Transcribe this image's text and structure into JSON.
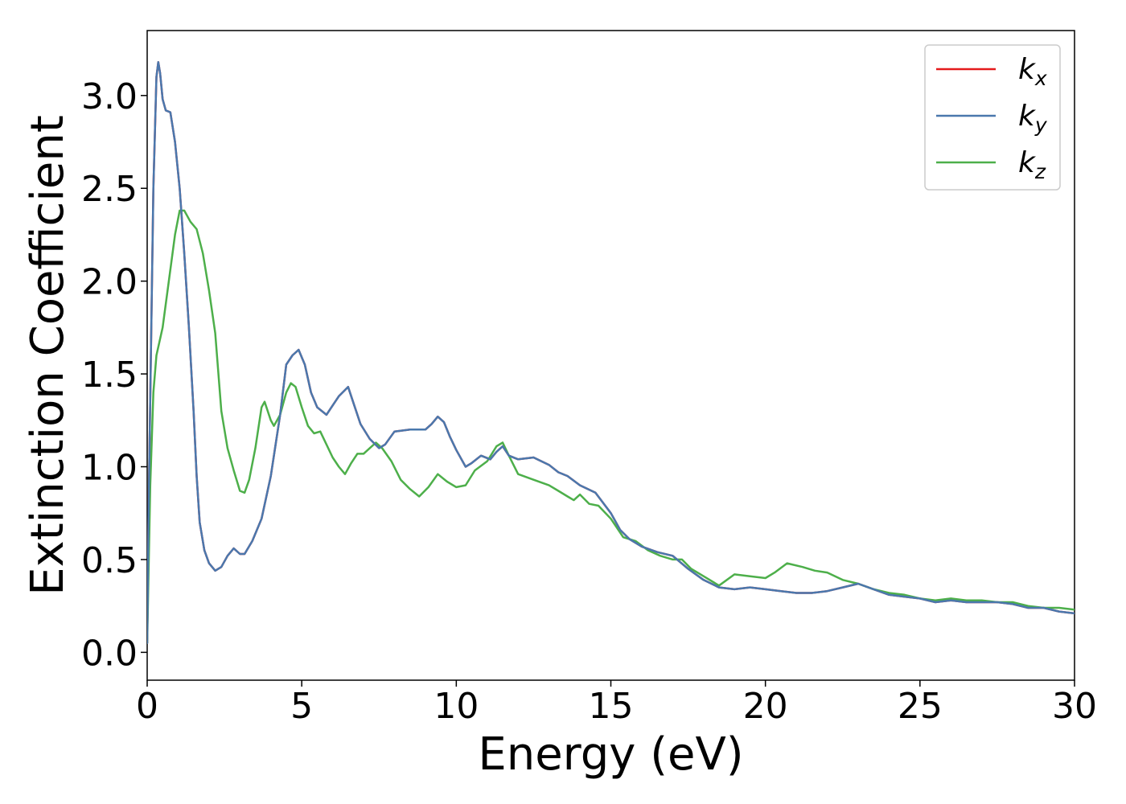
{
  "chart_data": {
    "type": "line",
    "title": "",
    "xlabel": "Energy (eV)",
    "ylabel": "Extinction Coefficient",
    "xlim": [
      0,
      30
    ],
    "ylim": [
      -0.15,
      3.35
    ],
    "xticks": [
      0,
      5,
      10,
      15,
      20,
      25,
      30
    ],
    "xtick_labels": [
      "0",
      "5",
      "10",
      "15",
      "20",
      "25",
      "30"
    ],
    "yticks": [
      0.0,
      0.5,
      1.0,
      1.5,
      2.0,
      2.5,
      3.0
    ],
    "ytick_labels": [
      "0.0",
      "0.5",
      "1.0",
      "1.5",
      "2.0",
      "2.5",
      "3.0"
    ],
    "grid": false,
    "legend": {
      "position": "top-right"
    },
    "series": [
      {
        "name": "k",
        "subscript": "x",
        "color": "#e41a1c",
        "points": [
          [
            0,
            0.05
          ],
          [
            0.05,
            0.8
          ],
          [
            0.12,
            1.6
          ],
          [
            0.2,
            2.5
          ],
          [
            0.3,
            3.1
          ],
          [
            0.36,
            3.18
          ],
          [
            0.42,
            3.12
          ],
          [
            0.5,
            2.98
          ],
          [
            0.6,
            2.92
          ],
          [
            0.75,
            2.91
          ],
          [
            0.9,
            2.75
          ],
          [
            1.05,
            2.5
          ],
          [
            1.2,
            2.15
          ],
          [
            1.35,
            1.75
          ],
          [
            1.5,
            1.3
          ],
          [
            1.6,
            0.95
          ],
          [
            1.7,
            0.7
          ],
          [
            1.85,
            0.55
          ],
          [
            2.0,
            0.48
          ],
          [
            2.2,
            0.44
          ],
          [
            2.4,
            0.46
          ],
          [
            2.6,
            0.52
          ],
          [
            2.8,
            0.56
          ],
          [
            3.0,
            0.53
          ],
          [
            3.15,
            0.53
          ],
          [
            3.4,
            0.6
          ],
          [
            3.7,
            0.72
          ],
          [
            4.0,
            0.95
          ],
          [
            4.3,
            1.28
          ],
          [
            4.5,
            1.55
          ],
          [
            4.7,
            1.6
          ],
          [
            4.9,
            1.63
          ],
          [
            5.1,
            1.55
          ],
          [
            5.3,
            1.4
          ],
          [
            5.5,
            1.32
          ],
          [
            5.8,
            1.28
          ],
          [
            6.0,
            1.33
          ],
          [
            6.2,
            1.38
          ],
          [
            6.5,
            1.43
          ],
          [
            6.7,
            1.33
          ],
          [
            6.9,
            1.23
          ],
          [
            7.2,
            1.15
          ],
          [
            7.5,
            1.1
          ],
          [
            7.7,
            1.12
          ],
          [
            8.0,
            1.19
          ],
          [
            8.5,
            1.2
          ],
          [
            9.0,
            1.2
          ],
          [
            9.2,
            1.23
          ],
          [
            9.4,
            1.27
          ],
          [
            9.6,
            1.24
          ],
          [
            9.8,
            1.16
          ],
          [
            10.0,
            1.09
          ],
          [
            10.3,
            1.0
          ],
          [
            10.5,
            1.02
          ],
          [
            10.8,
            1.06
          ],
          [
            11.1,
            1.04
          ],
          [
            11.3,
            1.08
          ],
          [
            11.5,
            1.11
          ],
          [
            11.7,
            1.06
          ],
          [
            12.0,
            1.04
          ],
          [
            12.5,
            1.05
          ],
          [
            13.0,
            1.01
          ],
          [
            13.3,
            0.97
          ],
          [
            13.6,
            0.95
          ],
          [
            14.0,
            0.9
          ],
          [
            14.5,
            0.86
          ],
          [
            15.0,
            0.75
          ],
          [
            15.3,
            0.66
          ],
          [
            15.6,
            0.61
          ],
          [
            16.0,
            0.57
          ],
          [
            16.5,
            0.54
          ],
          [
            17.0,
            0.52
          ],
          [
            17.5,
            0.45
          ],
          [
            18.0,
            0.39
          ],
          [
            18.5,
            0.35
          ],
          [
            19.0,
            0.34
          ],
          [
            19.5,
            0.35
          ],
          [
            20.0,
            0.34
          ],
          [
            20.5,
            0.33
          ],
          [
            21.0,
            0.32
          ],
          [
            21.5,
            0.32
          ],
          [
            22.0,
            0.33
          ],
          [
            22.5,
            0.35
          ],
          [
            23.0,
            0.37
          ],
          [
            23.5,
            0.34
          ],
          [
            24.0,
            0.31
          ],
          [
            24.5,
            0.3
          ],
          [
            25.0,
            0.29
          ],
          [
            25.5,
            0.27
          ],
          [
            26.0,
            0.28
          ],
          [
            26.5,
            0.27
          ],
          [
            27.0,
            0.27
          ],
          [
            27.5,
            0.27
          ],
          [
            28.0,
            0.26
          ],
          [
            28.5,
            0.24
          ],
          [
            29.0,
            0.24
          ],
          [
            29.5,
            0.22
          ],
          [
            30.0,
            0.21
          ]
        ]
      },
      {
        "name": "k",
        "subscript": "y",
        "color": "#4a78ad",
        "points": [
          [
            0,
            0.05
          ],
          [
            0.05,
            0.8
          ],
          [
            0.12,
            1.6
          ],
          [
            0.2,
            2.5
          ],
          [
            0.3,
            3.1
          ],
          [
            0.36,
            3.18
          ],
          [
            0.42,
            3.12
          ],
          [
            0.5,
            2.98
          ],
          [
            0.6,
            2.92
          ],
          [
            0.75,
            2.91
          ],
          [
            0.9,
            2.75
          ],
          [
            1.05,
            2.5
          ],
          [
            1.2,
            2.15
          ],
          [
            1.35,
            1.75
          ],
          [
            1.5,
            1.3
          ],
          [
            1.6,
            0.95
          ],
          [
            1.7,
            0.7
          ],
          [
            1.85,
            0.55
          ],
          [
            2.0,
            0.48
          ],
          [
            2.2,
            0.44
          ],
          [
            2.4,
            0.46
          ],
          [
            2.6,
            0.52
          ],
          [
            2.8,
            0.56
          ],
          [
            3.0,
            0.53
          ],
          [
            3.15,
            0.53
          ],
          [
            3.4,
            0.6
          ],
          [
            3.7,
            0.72
          ],
          [
            4.0,
            0.95
          ],
          [
            4.3,
            1.28
          ],
          [
            4.5,
            1.55
          ],
          [
            4.7,
            1.6
          ],
          [
            4.9,
            1.63
          ],
          [
            5.1,
            1.55
          ],
          [
            5.3,
            1.4
          ],
          [
            5.5,
            1.32
          ],
          [
            5.8,
            1.28
          ],
          [
            6.0,
            1.33
          ],
          [
            6.2,
            1.38
          ],
          [
            6.5,
            1.43
          ],
          [
            6.7,
            1.33
          ],
          [
            6.9,
            1.23
          ],
          [
            7.2,
            1.15
          ],
          [
            7.5,
            1.1
          ],
          [
            7.7,
            1.12
          ],
          [
            8.0,
            1.19
          ],
          [
            8.5,
            1.2
          ],
          [
            9.0,
            1.2
          ],
          [
            9.2,
            1.23
          ],
          [
            9.4,
            1.27
          ],
          [
            9.6,
            1.24
          ],
          [
            9.8,
            1.16
          ],
          [
            10.0,
            1.09
          ],
          [
            10.3,
            1.0
          ],
          [
            10.5,
            1.02
          ],
          [
            10.8,
            1.06
          ],
          [
            11.1,
            1.04
          ],
          [
            11.3,
            1.08
          ],
          [
            11.5,
            1.11
          ],
          [
            11.7,
            1.06
          ],
          [
            12.0,
            1.04
          ],
          [
            12.5,
            1.05
          ],
          [
            13.0,
            1.01
          ],
          [
            13.3,
            0.97
          ],
          [
            13.6,
            0.95
          ],
          [
            14.0,
            0.9
          ],
          [
            14.5,
            0.86
          ],
          [
            15.0,
            0.75
          ],
          [
            15.3,
            0.66
          ],
          [
            15.6,
            0.61
          ],
          [
            16.0,
            0.57
          ],
          [
            16.5,
            0.54
          ],
          [
            17.0,
            0.52
          ],
          [
            17.5,
            0.45
          ],
          [
            18.0,
            0.39
          ],
          [
            18.5,
            0.35
          ],
          [
            19.0,
            0.34
          ],
          [
            19.5,
            0.35
          ],
          [
            20.0,
            0.34
          ],
          [
            20.5,
            0.33
          ],
          [
            21.0,
            0.32
          ],
          [
            21.5,
            0.32
          ],
          [
            22.0,
            0.33
          ],
          [
            22.5,
            0.35
          ],
          [
            23.0,
            0.37
          ],
          [
            23.5,
            0.34
          ],
          [
            24.0,
            0.31
          ],
          [
            24.5,
            0.3
          ],
          [
            25.0,
            0.29
          ],
          [
            25.5,
            0.27
          ],
          [
            26.0,
            0.28
          ],
          [
            26.5,
            0.27
          ],
          [
            27.0,
            0.27
          ],
          [
            27.5,
            0.27
          ],
          [
            28.0,
            0.26
          ],
          [
            28.5,
            0.24
          ],
          [
            29.0,
            0.24
          ],
          [
            29.5,
            0.22
          ],
          [
            30.0,
            0.21
          ]
        ]
      },
      {
        "name": "k",
        "subscript": "z",
        "color": "#4daf4a",
        "points": [
          [
            0,
            0.05
          ],
          [
            0.1,
            0.9
          ],
          [
            0.2,
            1.4
          ],
          [
            0.3,
            1.6
          ],
          [
            0.5,
            1.75
          ],
          [
            0.7,
            2.0
          ],
          [
            0.9,
            2.25
          ],
          [
            1.05,
            2.38
          ],
          [
            1.2,
            2.38
          ],
          [
            1.4,
            2.32
          ],
          [
            1.6,
            2.28
          ],
          [
            1.8,
            2.15
          ],
          [
            2.0,
            1.95
          ],
          [
            2.2,
            1.72
          ],
          [
            2.4,
            1.3
          ],
          [
            2.6,
            1.1
          ],
          [
            2.8,
            0.98
          ],
          [
            3.0,
            0.87
          ],
          [
            3.15,
            0.86
          ],
          [
            3.3,
            0.93
          ],
          [
            3.5,
            1.1
          ],
          [
            3.7,
            1.32
          ],
          [
            3.8,
            1.35
          ],
          [
            4.0,
            1.25
          ],
          [
            4.1,
            1.22
          ],
          [
            4.3,
            1.28
          ],
          [
            4.5,
            1.4
          ],
          [
            4.65,
            1.45
          ],
          [
            4.8,
            1.43
          ],
          [
            5.0,
            1.32
          ],
          [
            5.2,
            1.22
          ],
          [
            5.4,
            1.18
          ],
          [
            5.6,
            1.19
          ],
          [
            5.8,
            1.12
          ],
          [
            6.0,
            1.05
          ],
          [
            6.2,
            1.0
          ],
          [
            6.4,
            0.96
          ],
          [
            6.6,
            1.02
          ],
          [
            6.8,
            1.07
          ],
          [
            7.0,
            1.07
          ],
          [
            7.2,
            1.1
          ],
          [
            7.4,
            1.13
          ],
          [
            7.6,
            1.1
          ],
          [
            7.9,
            1.03
          ],
          [
            8.2,
            0.93
          ],
          [
            8.5,
            0.88
          ],
          [
            8.8,
            0.84
          ],
          [
            9.1,
            0.89
          ],
          [
            9.4,
            0.96
          ],
          [
            9.7,
            0.92
          ],
          [
            10.0,
            0.89
          ],
          [
            10.3,
            0.9
          ],
          [
            10.6,
            0.98
          ],
          [
            11.0,
            1.03
          ],
          [
            11.3,
            1.11
          ],
          [
            11.5,
            1.13
          ],
          [
            11.7,
            1.06
          ],
          [
            12.0,
            0.96
          ],
          [
            12.5,
            0.93
          ],
          [
            13.0,
            0.9
          ],
          [
            13.3,
            0.87
          ],
          [
            13.6,
            0.84
          ],
          [
            13.8,
            0.82
          ],
          [
            14.0,
            0.85
          ],
          [
            14.3,
            0.8
          ],
          [
            14.6,
            0.79
          ],
          [
            15.0,
            0.72
          ],
          [
            15.4,
            0.62
          ],
          [
            15.8,
            0.6
          ],
          [
            16.2,
            0.55
          ],
          [
            16.6,
            0.52
          ],
          [
            17.0,
            0.5
          ],
          [
            17.3,
            0.5
          ],
          [
            17.6,
            0.45
          ],
          [
            18.0,
            0.41
          ],
          [
            18.5,
            0.36
          ],
          [
            19.0,
            0.42
          ],
          [
            19.5,
            0.41
          ],
          [
            20.0,
            0.4
          ],
          [
            20.3,
            0.43
          ],
          [
            20.7,
            0.48
          ],
          [
            21.2,
            0.46
          ],
          [
            21.6,
            0.44
          ],
          [
            22.0,
            0.43
          ],
          [
            22.5,
            0.39
          ],
          [
            23.0,
            0.37
          ],
          [
            23.5,
            0.34
          ],
          [
            24.0,
            0.32
          ],
          [
            24.5,
            0.31
          ],
          [
            25.0,
            0.29
          ],
          [
            25.5,
            0.28
          ],
          [
            26.0,
            0.29
          ],
          [
            26.5,
            0.28
          ],
          [
            27.0,
            0.28
          ],
          [
            27.5,
            0.27
          ],
          [
            28.0,
            0.27
          ],
          [
            28.5,
            0.25
          ],
          [
            29.0,
            0.24
          ],
          [
            29.5,
            0.24
          ],
          [
            30.0,
            0.23
          ]
        ]
      }
    ]
  }
}
